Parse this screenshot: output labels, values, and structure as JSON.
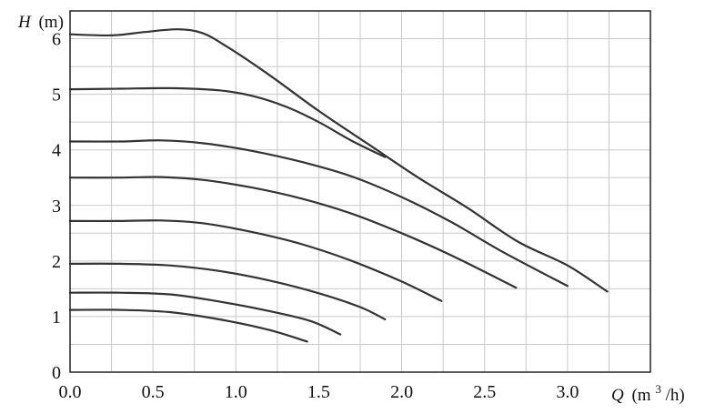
{
  "chart_data": {
    "type": "line",
    "title": "",
    "xlabel": {
      "symbol": "Q",
      "unit_prefix": "(m",
      "unit_sup": "3",
      "unit_suffix": "/h)"
    },
    "ylabel": {
      "symbol": "H",
      "unit": "(m)"
    },
    "xlim": [
      0,
      3.5
    ],
    "ylim": [
      0,
      6.5
    ],
    "x_ticks": [
      "0.0",
      "0.5",
      "1.0",
      "1.5",
      "2.0",
      "2.5",
      "3.0"
    ],
    "y_ticks": [
      "0",
      "1",
      "2",
      "3",
      "4",
      "5",
      "6"
    ],
    "grid": true,
    "line_color": "#333333",
    "grid_color": "#c8c8c8",
    "series": [
      {
        "points": [
          [
            0,
            1.12
          ],
          [
            0.3,
            1.12
          ],
          [
            0.6,
            1.08
          ],
          [
            0.9,
            0.95
          ],
          [
            1.2,
            0.76
          ],
          [
            1.43,
            0.55
          ]
        ]
      },
      {
        "points": [
          [
            0,
            1.43
          ],
          [
            0.3,
            1.43
          ],
          [
            0.6,
            1.4
          ],
          [
            0.9,
            1.27
          ],
          [
            1.2,
            1.1
          ],
          [
            1.45,
            0.92
          ],
          [
            1.63,
            0.68
          ]
        ]
      },
      {
        "points": [
          [
            0,
            1.95
          ],
          [
            0.3,
            1.95
          ],
          [
            0.6,
            1.92
          ],
          [
            0.9,
            1.82
          ],
          [
            1.2,
            1.65
          ],
          [
            1.5,
            1.42
          ],
          [
            1.75,
            1.17
          ],
          [
            1.9,
            0.95
          ]
        ]
      },
      {
        "points": [
          [
            0,
            2.72
          ],
          [
            0.3,
            2.72
          ],
          [
            0.55,
            2.73
          ],
          [
            0.8,
            2.68
          ],
          [
            1.1,
            2.52
          ],
          [
            1.4,
            2.3
          ],
          [
            1.7,
            2.0
          ],
          [
            2.0,
            1.63
          ],
          [
            2.24,
            1.28
          ]
        ]
      },
      {
        "points": [
          [
            0,
            3.5
          ],
          [
            0.3,
            3.5
          ],
          [
            0.55,
            3.51
          ],
          [
            0.8,
            3.46
          ],
          [
            1.1,
            3.32
          ],
          [
            1.4,
            3.12
          ],
          [
            1.7,
            2.85
          ],
          [
            2.0,
            2.5
          ],
          [
            2.3,
            2.1
          ],
          [
            2.69,
            1.52
          ]
        ]
      },
      {
        "points": [
          [
            0,
            4.15
          ],
          [
            0.3,
            4.15
          ],
          [
            0.55,
            4.17
          ],
          [
            0.8,
            4.12
          ],
          [
            1.1,
            3.98
          ],
          [
            1.4,
            3.78
          ],
          [
            1.7,
            3.52
          ],
          [
            2.0,
            3.15
          ],
          [
            2.3,
            2.7
          ],
          [
            2.6,
            2.18
          ],
          [
            3.0,
            1.55
          ]
        ]
      },
      {
        "points": [
          [
            0,
            5.09
          ],
          [
            0.3,
            5.1
          ],
          [
            0.6,
            5.11
          ],
          [
            0.9,
            5.07
          ],
          [
            1.1,
            4.97
          ],
          [
            1.3,
            4.78
          ],
          [
            1.5,
            4.5
          ],
          [
            1.7,
            4.16
          ],
          [
            1.9,
            3.87
          ]
        ]
      },
      {
        "points": [
          [
            0,
            6.08
          ],
          [
            0.25,
            6.06
          ],
          [
            0.45,
            6.12
          ],
          [
            0.65,
            6.17
          ],
          [
            0.8,
            6.1
          ],
          [
            0.95,
            5.85
          ],
          [
            1.2,
            5.35
          ],
          [
            1.5,
            4.7
          ],
          [
            1.8,
            4.1
          ],
          [
            2.1,
            3.5
          ],
          [
            2.4,
            2.95
          ],
          [
            2.7,
            2.35
          ],
          [
            3.0,
            1.92
          ],
          [
            3.24,
            1.45
          ]
        ]
      }
    ]
  }
}
